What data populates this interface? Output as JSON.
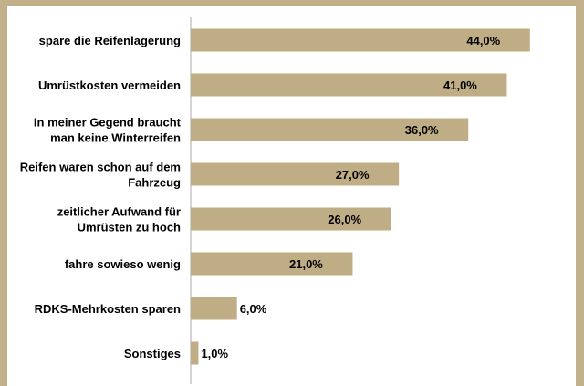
{
  "chart_data": {
    "type": "bar",
    "orientation": "horizontal",
    "title": "",
    "categories": [
      "spare die Reifenlagerung",
      "Umrüstkosten vermeiden",
      "In meiner Gegend braucht man keine Winterreifen",
      "Reifen waren schon auf dem Fahrzeug",
      "zeitlicher Aufwand für Umrüsten zu hoch",
      "fahre sowieso wenig",
      "RDKS-Mehrkosten sparen",
      "Sonstiges"
    ],
    "category_lines": [
      [
        "spare die Reifenlagerung"
      ],
      [
        "Umrüstkosten vermeiden"
      ],
      [
        "In meiner Gegend braucht",
        "man keine Winterreifen"
      ],
      [
        "Reifen waren schon auf dem",
        "Fahrzeug"
      ],
      [
        "zeitlicher Aufwand für",
        "Umrüsten zu hoch"
      ],
      [
        "fahre sowieso wenig"
      ],
      [
        "RDKS-Mehrkosten sparen"
      ],
      [
        "Sonstiges"
      ]
    ],
    "values": [
      44.0,
      41.0,
      36.0,
      27.0,
      26.0,
      21.0,
      6.0,
      1.0
    ],
    "value_labels": [
      "44,0%",
      "41,0%",
      "36,0%",
      "27,0%",
      "26,0%",
      "21,0%",
      "6,0%",
      "1,0%"
    ],
    "unit": "%",
    "xlim": [
      0,
      50
    ],
    "grid": false,
    "legend": "none",
    "colors": {
      "bar": "#bfad85",
      "frame": "#c2b08a",
      "axis": "#a8a8a8"
    }
  }
}
